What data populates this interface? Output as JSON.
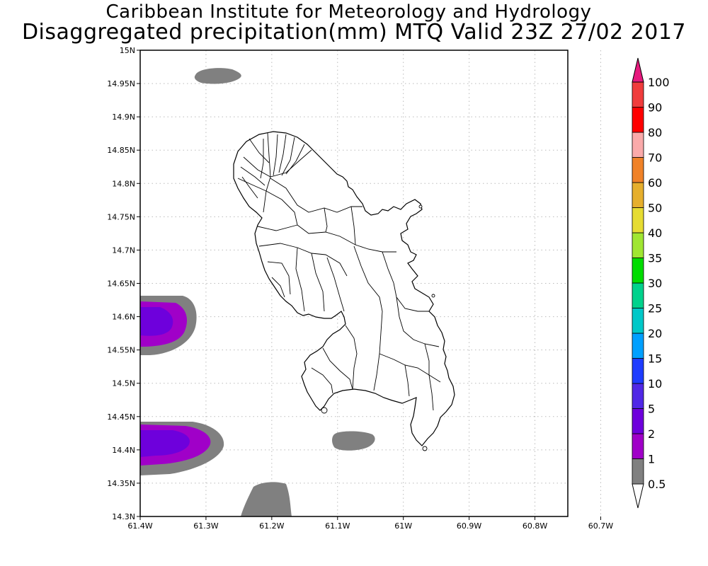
{
  "title": {
    "line1": "Caribbean Institute for Meteorology and Hydrology",
    "line2": "Disaggregated precipitation(mm) MTQ Valid 23Z 27/02 2017"
  },
  "map": {
    "region": "Martinique",
    "lon_range": [
      -61.4,
      -60.75
    ],
    "lat_range": [
      14.3,
      15.0
    ],
    "grid": "dotted",
    "x_ticks": [
      {
        "value": -61.4,
        "label": "61.4W"
      },
      {
        "value": -61.3,
        "label": "61.3W"
      },
      {
        "value": -61.2,
        "label": "61.2W"
      },
      {
        "value": -61.1,
        "label": "61.1W"
      },
      {
        "value": -61.0,
        "label": "61W"
      },
      {
        "value": -60.9,
        "label": "60.9W"
      },
      {
        "value": -60.8,
        "label": "60.8W"
      },
      {
        "value": -60.7,
        "label": "60.7W"
      }
    ],
    "y_ticks": [
      {
        "value": 14.3,
        "label": "14.3N"
      },
      {
        "value": 14.35,
        "label": "14.35N"
      },
      {
        "value": 14.4,
        "label": "14.4N"
      },
      {
        "value": 14.45,
        "label": "14.45N"
      },
      {
        "value": 14.5,
        "label": "14.5N"
      },
      {
        "value": 14.55,
        "label": "14.55N"
      },
      {
        "value": 14.6,
        "label": "14.6N"
      },
      {
        "value": 14.65,
        "label": "14.65N"
      },
      {
        "value": 14.7,
        "label": "14.7N"
      },
      {
        "value": 14.75,
        "label": "14.75N"
      },
      {
        "value": 14.8,
        "label": "14.8N"
      },
      {
        "value": 14.85,
        "label": "14.85N"
      },
      {
        "value": 14.9,
        "label": "14.9N"
      },
      {
        "value": 14.95,
        "label": "14.95N"
      },
      {
        "value": 15.0,
        "label": "15N"
      }
    ]
  },
  "colorbar": {
    "levels": [
      {
        "label": "0.5",
        "color": "#ffffff"
      },
      {
        "label": "1",
        "color": "#808080"
      },
      {
        "label": "2",
        "color": "#a000c8"
      },
      {
        "label": "5",
        "color": "#6e00dc"
      },
      {
        "label": "10",
        "color": "#5028e6"
      },
      {
        "label": "15",
        "color": "#1e3cff"
      },
      {
        "label": "20",
        "color": "#00a0ff"
      },
      {
        "label": "25",
        "color": "#00c8c8"
      },
      {
        "label": "30",
        "color": "#00d28c"
      },
      {
        "label": "35",
        "color": "#00dc00"
      },
      {
        "label": "40",
        "color": "#a0e632"
      },
      {
        "label": "50",
        "color": "#e6dc32"
      },
      {
        "label": "60",
        "color": "#e6af2d"
      },
      {
        "label": "70",
        "color": "#f08228"
      },
      {
        "label": "80",
        "color": "#faaaaa"
      },
      {
        "label": "90",
        "color": "#ff0000"
      },
      {
        "label": "100",
        "color": "#f03c3c"
      }
    ],
    "overflow_color": "#e6197d"
  }
}
